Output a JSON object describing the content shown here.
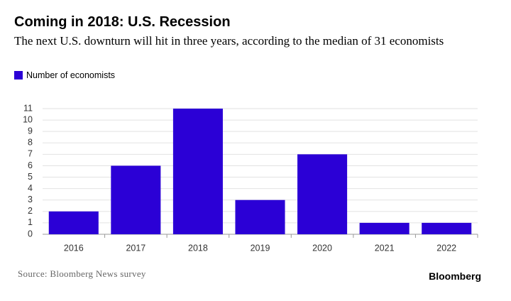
{
  "chart_data": {
    "type": "bar",
    "title": "Coming in 2018: U.S. Recession",
    "subtitle": "The next U.S. downturn will hit in three years, according to the median of 31 economists",
    "categories": [
      "2016",
      "2017",
      "2018",
      "2019",
      "2020",
      "2021",
      "2022"
    ],
    "series": [
      {
        "name": "Number of economists",
        "color": "#2b00d6",
        "values": [
          2,
          6,
          11,
          3,
          7,
          1,
          1
        ]
      }
    ],
    "ylim": [
      0,
      11
    ],
    "yticks": [
      0,
      1,
      2,
      3,
      4,
      5,
      6,
      7,
      8,
      9,
      10,
      11
    ],
    "grid": true,
    "source": "Source: Bloomberg News survey",
    "brand": "Bloomberg"
  }
}
